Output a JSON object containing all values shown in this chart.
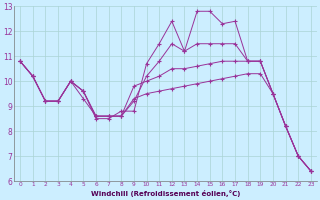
{
  "xlabel": "Windchill (Refroidissement éolien,°C)",
  "background_color": "#cceeff",
  "line_color": "#993399",
  "grid_color": "#aad4d4",
  "xlim": [
    -0.5,
    23.5
  ],
  "ylim": [
    6,
    13
  ],
  "xticks": [
    0,
    1,
    2,
    3,
    4,
    5,
    6,
    7,
    8,
    9,
    10,
    11,
    12,
    13,
    14,
    15,
    16,
    17,
    18,
    19,
    20,
    21,
    22,
    23
  ],
  "yticks": [
    6,
    7,
    8,
    9,
    10,
    11,
    12,
    13
  ],
  "series": [
    [
      10.8,
      10.2,
      9.2,
      9.2,
      10.0,
      9.6,
      8.5,
      8.5,
      8.8,
      8.8,
      10.7,
      11.5,
      12.4,
      11.2,
      12.8,
      12.8,
      12.3,
      12.4,
      10.8,
      10.8,
      9.5,
      8.2,
      7.0,
      6.4
    ],
    [
      10.8,
      10.2,
      9.2,
      9.2,
      10.0,
      9.6,
      8.6,
      8.6,
      8.6,
      9.2,
      10.2,
      10.8,
      11.5,
      11.2,
      11.5,
      11.5,
      11.5,
      11.5,
      10.8,
      10.8,
      9.5,
      8.2,
      7.0,
      6.4
    ],
    [
      10.8,
      10.2,
      9.2,
      9.2,
      10.0,
      9.6,
      8.6,
      8.6,
      8.6,
      9.8,
      10.0,
      10.2,
      10.5,
      10.5,
      10.6,
      10.7,
      10.8,
      10.8,
      10.8,
      10.8,
      9.5,
      8.2,
      7.0,
      6.4
    ],
    [
      10.8,
      10.2,
      9.2,
      9.2,
      10.0,
      9.3,
      8.6,
      8.6,
      8.6,
      9.3,
      9.5,
      9.6,
      9.7,
      9.8,
      9.9,
      10.0,
      10.1,
      10.2,
      10.3,
      10.3,
      9.5,
      8.2,
      7.0,
      6.4
    ]
  ]
}
